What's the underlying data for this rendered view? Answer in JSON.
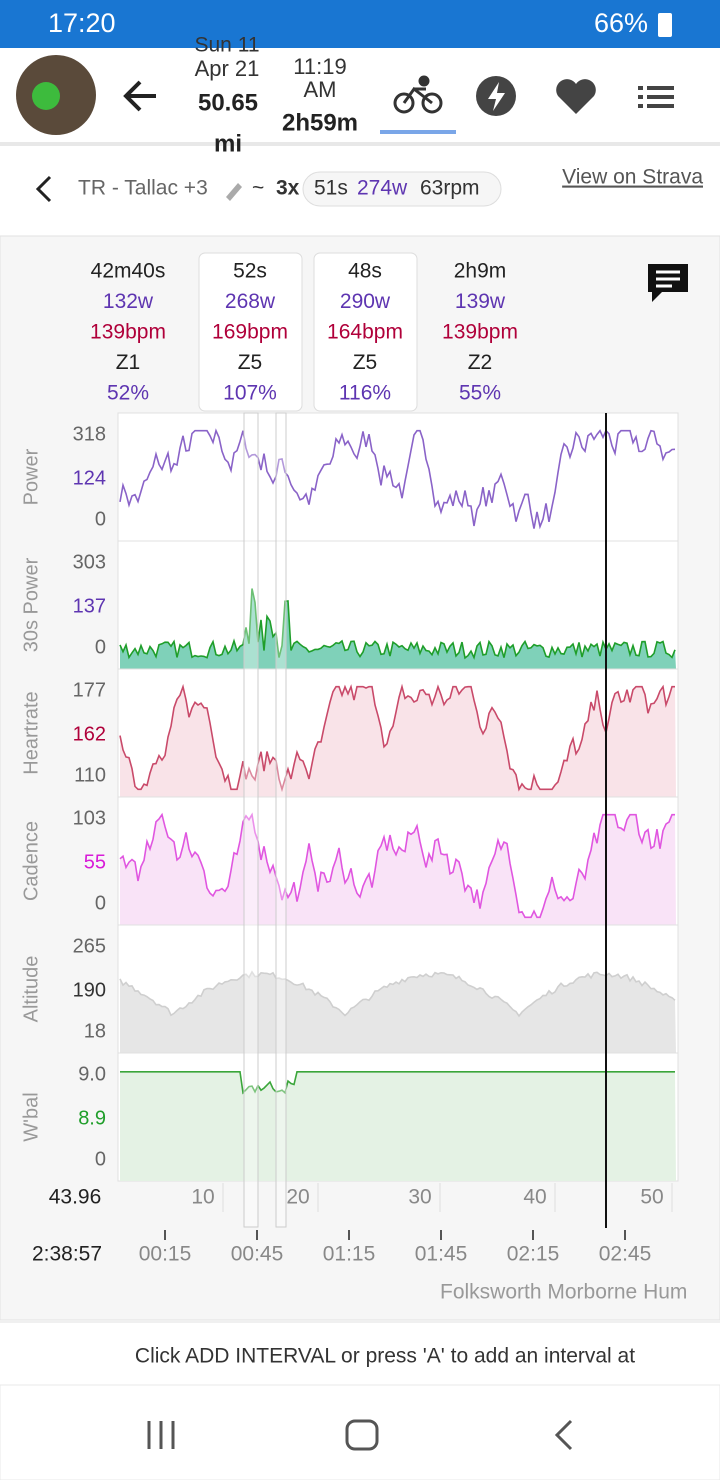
{
  "status_bar": {
    "time": "17:20",
    "battery": "66%"
  },
  "header": {
    "date_partial": "Sun 11",
    "date": "Apr 21",
    "distance": "50.65",
    "distance_unit": "mi",
    "start_time": "11:19",
    "start_ampm": "AM",
    "duration": "2h59m"
  },
  "workout": {
    "name": "TR - Tallac +3",
    "separator": "~",
    "repeat": "3x",
    "duration": "51s",
    "power": "274w",
    "cadence": "63rpm",
    "link": "View on Strava"
  },
  "intervals": [
    {
      "duration": "42m40s",
      "power": "132w",
      "heartrate": "139bpm",
      "zone": "Z1",
      "percent": "52%"
    },
    {
      "duration": "52s",
      "power": "268w",
      "heartrate": "169bpm",
      "zone": "Z5",
      "percent": "107%"
    },
    {
      "duration": "48s",
      "power": "290w",
      "heartrate": "164bpm",
      "zone": "Z5",
      "percent": "116%"
    },
    {
      "duration": "2h9m",
      "power": "139w",
      "heartrate": "139bpm",
      "zone": "Z2",
      "percent": "55%"
    }
  ],
  "plots": [
    {
      "label": "Power",
      "ticks": [
        "318",
        "124",
        "0"
      ]
    },
    {
      "label": "30s Power",
      "ticks": [
        "303",
        "137",
        "0"
      ]
    },
    {
      "label": "Heartrate",
      "ticks": [
        "177",
        "162",
        "110"
      ]
    },
    {
      "label": "Cadence",
      "ticks": [
        "103",
        "55",
        "0"
      ]
    },
    {
      "label": "Altitude",
      "ticks": [
        "265",
        "190",
        "18"
      ]
    },
    {
      "label": "W'bal",
      "ticks": [
        "9.0",
        "8.9",
        "0"
      ]
    }
  ],
  "distance_axis": {
    "start": "43.96",
    "ticks": [
      "10",
      "20",
      "30",
      "40",
      "50"
    ]
  },
  "time_axis": {
    "start": "2:38:57",
    "ticks": [
      "00:15",
      "00:45",
      "01:15",
      "01:45",
      "02:15",
      "02:45"
    ]
  },
  "location": "Folksworth Morborne Hum",
  "hint": "Click ADD INTERVAL or press 'A' to add an interval at"
}
